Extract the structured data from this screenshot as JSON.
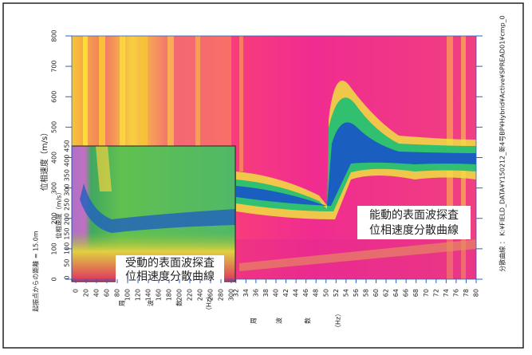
{
  "main": {
    "xlim": [
      0,
      80
    ],
    "ylim": [
      0,
      800
    ],
    "xticks": [
      32,
      34,
      36,
      38,
      40,
      42,
      44,
      46,
      48,
      50,
      52,
      54,
      56,
      58,
      60,
      62,
      64,
      66,
      68,
      70,
      72,
      74,
      76,
      78,
      80
    ],
    "yticks": [
      0,
      100,
      200,
      300,
      400,
      500,
      600,
      700,
      800
    ],
    "y_label": "位相速度（m/s）",
    "x_label": [
      "周",
      "波",
      "数",
      "（Hz）"
    ]
  },
  "inset": {
    "xlim": [
      0,
      300
    ],
    "ylim": [
      0,
      450
    ],
    "xticks": [
      0,
      20,
      40,
      60,
      80,
      100,
      120,
      140,
      160,
      180,
      200,
      220,
      240,
      260,
      280,
      300
    ],
    "yticks": [
      0,
      50,
      100,
      150,
      200,
      250,
      300,
      350,
      400,
      450
    ],
    "y_label": "位相速度（m/s）",
    "x_label": [
      "周",
      "波",
      "数",
      "（Hz）"
    ]
  },
  "annotations": {
    "active": [
      "能動的表面波探査",
      "位相速度分散曲線"
    ],
    "passive": [
      "受動的表面波探査",
      "位相速度分散曲線"
    ]
  },
  "source_distance": "起振点からの距離 = 15.0m",
  "file_path": "分散曲線 ： K:¥FIELD_DATA¥Y150212_新4号BP¥Hybrid¥Active¥SPREAD01¥cmp_0"
}
